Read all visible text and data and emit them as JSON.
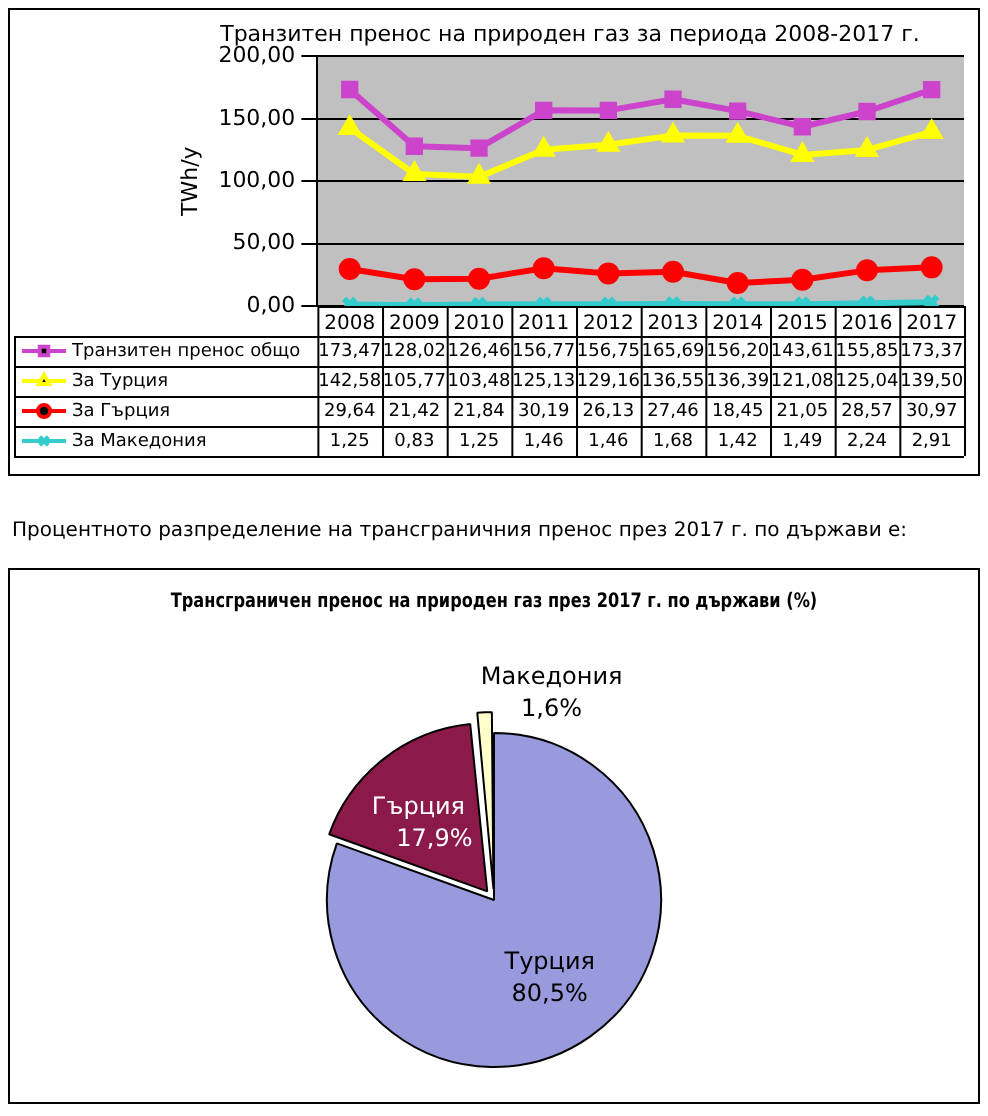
{
  "chart_data": [
    {
      "type": "line",
      "title": "Транзитен пренос на природен газ за периода 2008-2017 г.",
      "ylabel": "TWh/y",
      "categories": [
        "2008",
        "2009",
        "2010",
        "2011",
        "2012",
        "2013",
        "2014",
        "2015",
        "2016",
        "2017"
      ],
      "series": [
        {
          "name": "Транзитен пренос общо",
          "color": "#cc44cc",
          "marker": "square",
          "values": [
            173.47,
            128.02,
            126.46,
            156.77,
            156.75,
            165.69,
            156.2,
            143.61,
            155.85,
            173.37
          ],
          "value_labels": [
            "173,47",
            "128,02",
            "126,46",
            "156,77",
            "156,75",
            "165,69",
            "156,20",
            "143,61",
            "155,85",
            "173,37"
          ]
        },
        {
          "name": "За Турция",
          "color": "#ffff00",
          "marker": "triangle",
          "values": [
            142.58,
            105.77,
            103.48,
            125.13,
            129.16,
            136.55,
            136.39,
            121.08,
            125.04,
            139.5
          ],
          "value_labels": [
            "142,58",
            "105,77",
            "103,48",
            "125,13",
            "129,16",
            "136,55",
            "136,39",
            "121,08",
            "125,04",
            "139,50"
          ]
        },
        {
          "name": "За Гърция",
          "color": "#ff0000",
          "marker": "circle",
          "values": [
            29.64,
            21.42,
            21.84,
            30.19,
            26.13,
            27.46,
            18.45,
            21.05,
            28.57,
            30.97
          ],
          "value_labels": [
            "29,64",
            "21,42",
            "21,84",
            "30,19",
            "26,13",
            "27,46",
            "18,45",
            "21,05",
            "28,57",
            "30,97"
          ]
        },
        {
          "name": "За Македония",
          "color": "#33cccc",
          "marker": "cross",
          "values": [
            1.25,
            0.83,
            1.25,
            1.46,
            1.46,
            1.68,
            1.42,
            1.49,
            2.24,
            2.91
          ],
          "value_labels": [
            "1,25",
            "0,83",
            "1,25",
            "1,46",
            "1,46",
            "1,68",
            "1,42",
            "1,49",
            "2,24",
            "2,91"
          ]
        }
      ],
      "ylim": [
        0,
        200
      ],
      "yticks": [
        {
          "value": 0,
          "label": "0,00"
        },
        {
          "value": 50,
          "label": "50,00"
        },
        {
          "value": 100,
          "label": "100,00"
        },
        {
          "value": 150,
          "label": "150,00"
        },
        {
          "value": 200,
          "label": "200,00"
        }
      ],
      "grid": "y",
      "legend": "bottom"
    },
    {
      "type": "pie",
      "title": "Трансграничен пренос на природен газ през 2017 г. по държави (%)",
      "annotations": [
        "Процентното разпределение на трансграничния пренос през 2017 г. по държави е:"
      ],
      "categories": [
        "Турция",
        "Гърция",
        "Македония"
      ],
      "values": [
        80.5,
        17.9,
        1.6
      ],
      "value_labels": [
        "80,5%",
        "17,9%",
        "1,6%"
      ],
      "colors": [
        "#9999dd",
        "#8b1a4a",
        "#ffffcc"
      ]
    }
  ]
}
